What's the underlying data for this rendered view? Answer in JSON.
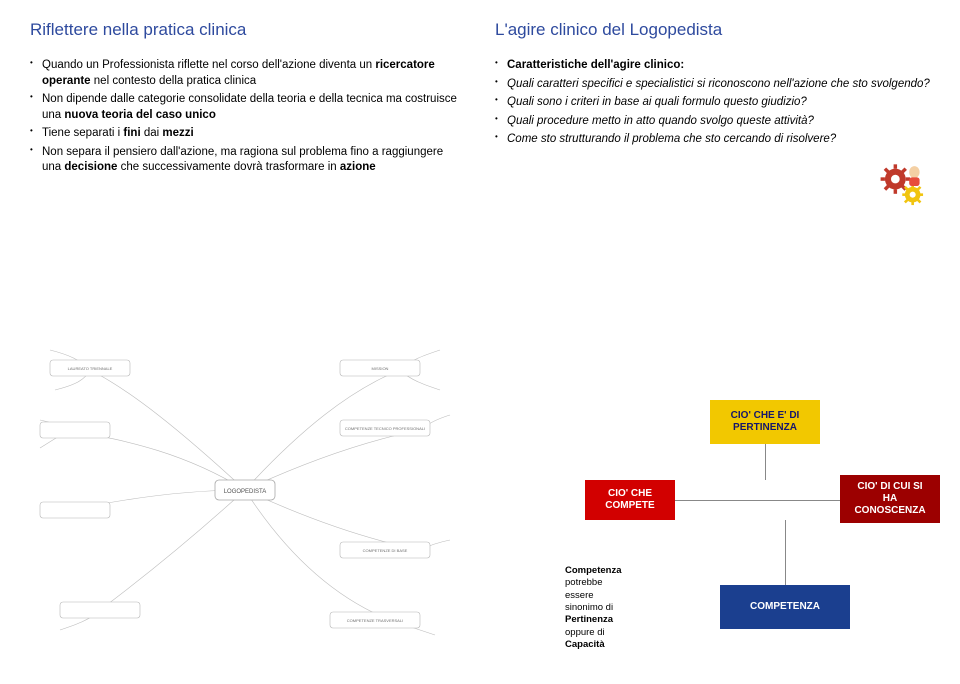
{
  "left": {
    "title": "Riflettere nella pratica clinica",
    "items": [
      {
        "html": "Quando un Professionista riflette nel corso dell'azione diventa un <b>ricercatore operante</b> nel contesto della pratica clinica"
      },
      {
        "html": "Non dipende dalle categorie consolidate della teoria e della tecnica ma costruisce una <b>nuova teoria del caso unico</b>"
      },
      {
        "html": "Tiene separati i <b>fini</b> dai <b>mezzi</b>"
      },
      {
        "html": "Non separa il pensiero dall'azione, ma ragiona sul problema fino a raggiungere una <b>decisione</b> che successivamente dovrà trasformare in <b>azione</b>"
      }
    ]
  },
  "right": {
    "title": "L'agire clinico del Logopedista",
    "items": [
      {
        "html": "<b>Caratteristiche dell'agire clinico:</b>"
      },
      {
        "html": "<i>Quali caratteri specifici e specialistici si riconoscono nell'azione che sto svolgendo?</i>"
      },
      {
        "html": "<i>Quali sono i  criteri in base ai quali formulo questo giudizio?</i>"
      },
      {
        "html": "<i>Quali procedure metto in atto quando svolgo queste attività?</i>"
      },
      {
        "html": "<i>Come sto strutturando il problema che sto cercando di risolvere?</i>"
      }
    ]
  },
  "blocks": {
    "pertinenza": "CIO' CHE E' DI PERTINENZA",
    "compete": "CIO' CHE COMPETE",
    "conoscenza": "CIO' DI CUI SI HA CONOSCENZA",
    "competenza": "COMPETENZA"
  },
  "note": {
    "lines": [
      "<b>Competenza</b>",
      "potrebbe",
      "essere",
      "sinonimo di",
      "<b>Pertinenza</b>",
      "oppure di",
      "<b>Capacità</b>"
    ]
  },
  "colors": {
    "title": "#2e4a9e",
    "yellow_bg": "#f2c800",
    "yellow_text": "#16166b",
    "red_bg": "#d20000",
    "darkred_bg": "#9c0000",
    "blue_bg": "#1b3f8f",
    "line": "#888888"
  }
}
